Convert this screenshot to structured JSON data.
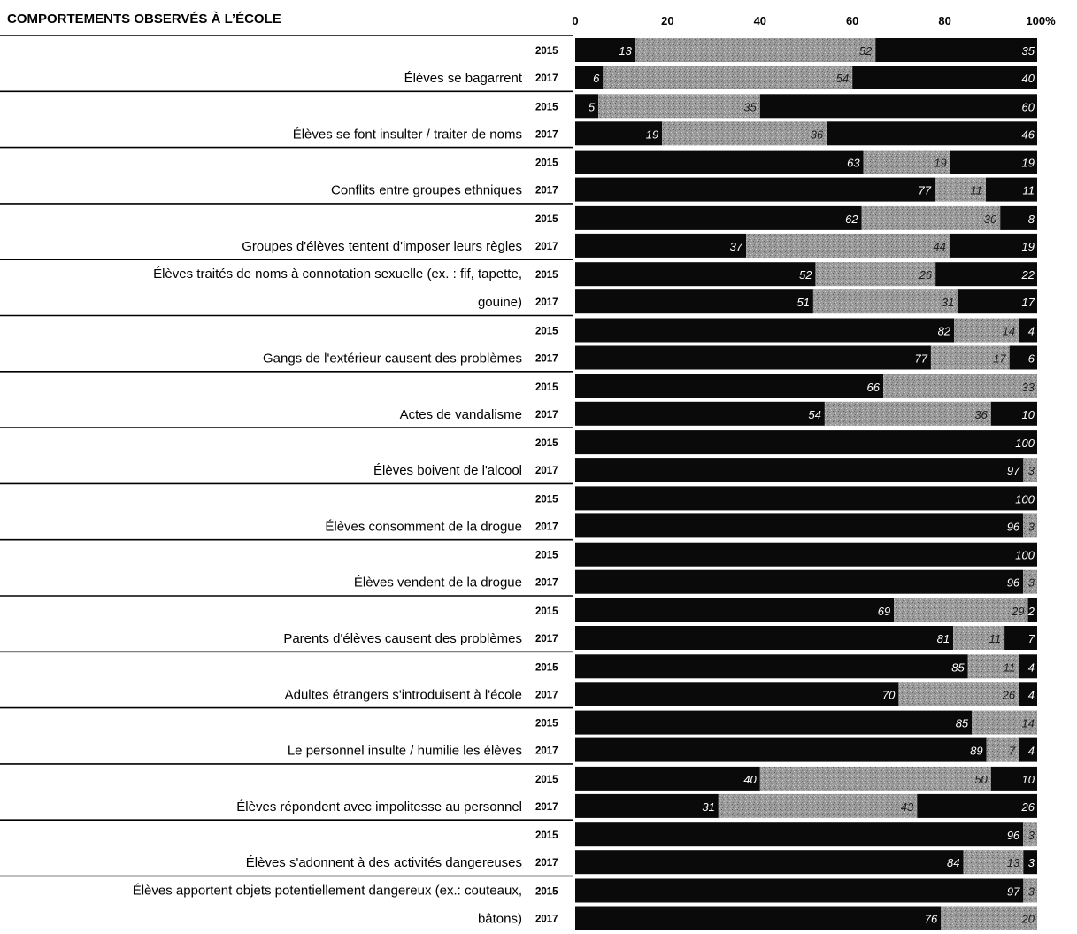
{
  "chart_data": {
    "type": "bar",
    "orientation": "horizontal",
    "stacked": true,
    "title": "COMPORTEMENTS OBSERVÉS À L’ÉCOLE",
    "x_ticks": [
      "0",
      "20",
      "40",
      "60",
      "80",
      "100%"
    ],
    "xlim": [
      0,
      100
    ],
    "colors": [
      "#0a0a0a",
      "#9a9a9a",
      "#0a0a0a"
    ],
    "grid": false,
    "legend": "none",
    "categories": [
      {
        "lines": [
          "Élèves se bagarrent"
        ],
        "rows": [
          {
            "year": "2015",
            "values": [
              13,
              52,
              35
            ]
          },
          {
            "year": "2017",
            "values": [
              6,
              54,
              40
            ]
          }
        ]
      },
      {
        "lines": [
          "Élèves se font insulter / traiter de noms"
        ],
        "rows": [
          {
            "year": "2015",
            "values": [
              5,
              35,
              60
            ]
          },
          {
            "year": "2017",
            "values": [
              19,
              36,
              46
            ]
          }
        ]
      },
      {
        "lines": [
          "Conflits entre groupes ethniques"
        ],
        "rows": [
          {
            "year": "2015",
            "values": [
              63,
              19,
              19
            ]
          },
          {
            "year": "2017",
            "values": [
              77,
              11,
              11
            ]
          }
        ]
      },
      {
        "lines": [
          "Groupes d'élèves tentent d'imposer leurs règles"
        ],
        "rows": [
          {
            "year": "2015",
            "values": [
              62,
              30,
              8
            ]
          },
          {
            "year": "2017",
            "values": [
              37,
              44,
              19
            ]
          }
        ]
      },
      {
        "lines": [
          "Élèves traités de noms à connotation sexuelle (ex. : fif, tapette,",
          "gouine)"
        ],
        "rows": [
          {
            "year": "2015",
            "values": [
              52,
              26,
              22
            ]
          },
          {
            "year": "2017",
            "values": [
              51,
              31,
              17
            ]
          }
        ]
      },
      {
        "lines": [
          "Gangs de l'extérieur causent des problèmes"
        ],
        "rows": [
          {
            "year": "2015",
            "values": [
              82,
              14,
              4
            ]
          },
          {
            "year": "2017",
            "values": [
              77,
              17,
              6
            ]
          }
        ]
      },
      {
        "lines": [
          "Actes de vandalisme"
        ],
        "rows": [
          {
            "year": "2015",
            "values": [
              66,
              33,
              null
            ]
          },
          {
            "year": "2017",
            "values": [
              54,
              36,
              10
            ]
          }
        ]
      },
      {
        "lines": [
          "Élèves boivent de l'alcool"
        ],
        "rows": [
          {
            "year": "2015",
            "values": [
              100,
              null,
              null
            ]
          },
          {
            "year": "2017",
            "values": [
              97,
              3,
              null
            ]
          }
        ]
      },
      {
        "lines": [
          "Élèves consomment de la drogue"
        ],
        "rows": [
          {
            "year": "2015",
            "values": [
              100,
              null,
              null
            ]
          },
          {
            "year": "2017",
            "values": [
              96,
              3,
              null
            ]
          }
        ]
      },
      {
        "lines": [
          "Élèves vendent de la drogue"
        ],
        "rows": [
          {
            "year": "2015",
            "values": [
              100,
              null,
              null
            ]
          },
          {
            "year": "2017",
            "values": [
              96,
              3,
              null
            ]
          }
        ]
      },
      {
        "lines": [
          "Parents d'élèves causent des problèmes"
        ],
        "rows": [
          {
            "year": "2015",
            "values": [
              69,
              29,
              2
            ]
          },
          {
            "year": "2017",
            "values": [
              81,
              11,
              7
            ]
          }
        ]
      },
      {
        "lines": [
          "Adultes étrangers s'introduisent à l'école"
        ],
        "rows": [
          {
            "year": "2015",
            "values": [
              85,
              11,
              4
            ]
          },
          {
            "year": "2017",
            "values": [
              70,
              26,
              4
            ]
          }
        ]
      },
      {
        "lines": [
          "Le personnel insulte / humilie les élèves"
        ],
        "rows": [
          {
            "year": "2015",
            "values": [
              85,
              14,
              null
            ]
          },
          {
            "year": "2017",
            "values": [
              89,
              7,
              4
            ]
          }
        ]
      },
      {
        "lines": [
          "Élèves répondent avec impolitesse au personnel"
        ],
        "rows": [
          {
            "year": "2015",
            "values": [
              40,
              50,
              10
            ]
          },
          {
            "year": "2017",
            "values": [
              31,
              43,
              26
            ]
          }
        ]
      },
      {
        "lines": [
          "Élèves s'adonnent à des activités dangereuses"
        ],
        "rows": [
          {
            "year": "2015",
            "values": [
              96,
              3,
              null
            ]
          },
          {
            "year": "2017",
            "values": [
              84,
              13,
              3
            ]
          }
        ]
      },
      {
        "lines": [
          "Élèves apportent objets potentiellement dangereux (ex.: couteaux,",
          "bâtons)"
        ],
        "rows": [
          {
            "year": "2015",
            "values": [
              97,
              3,
              null
            ]
          },
          {
            "year": "2017",
            "values": [
              76,
              20,
              null
            ]
          }
        ]
      }
    ]
  }
}
